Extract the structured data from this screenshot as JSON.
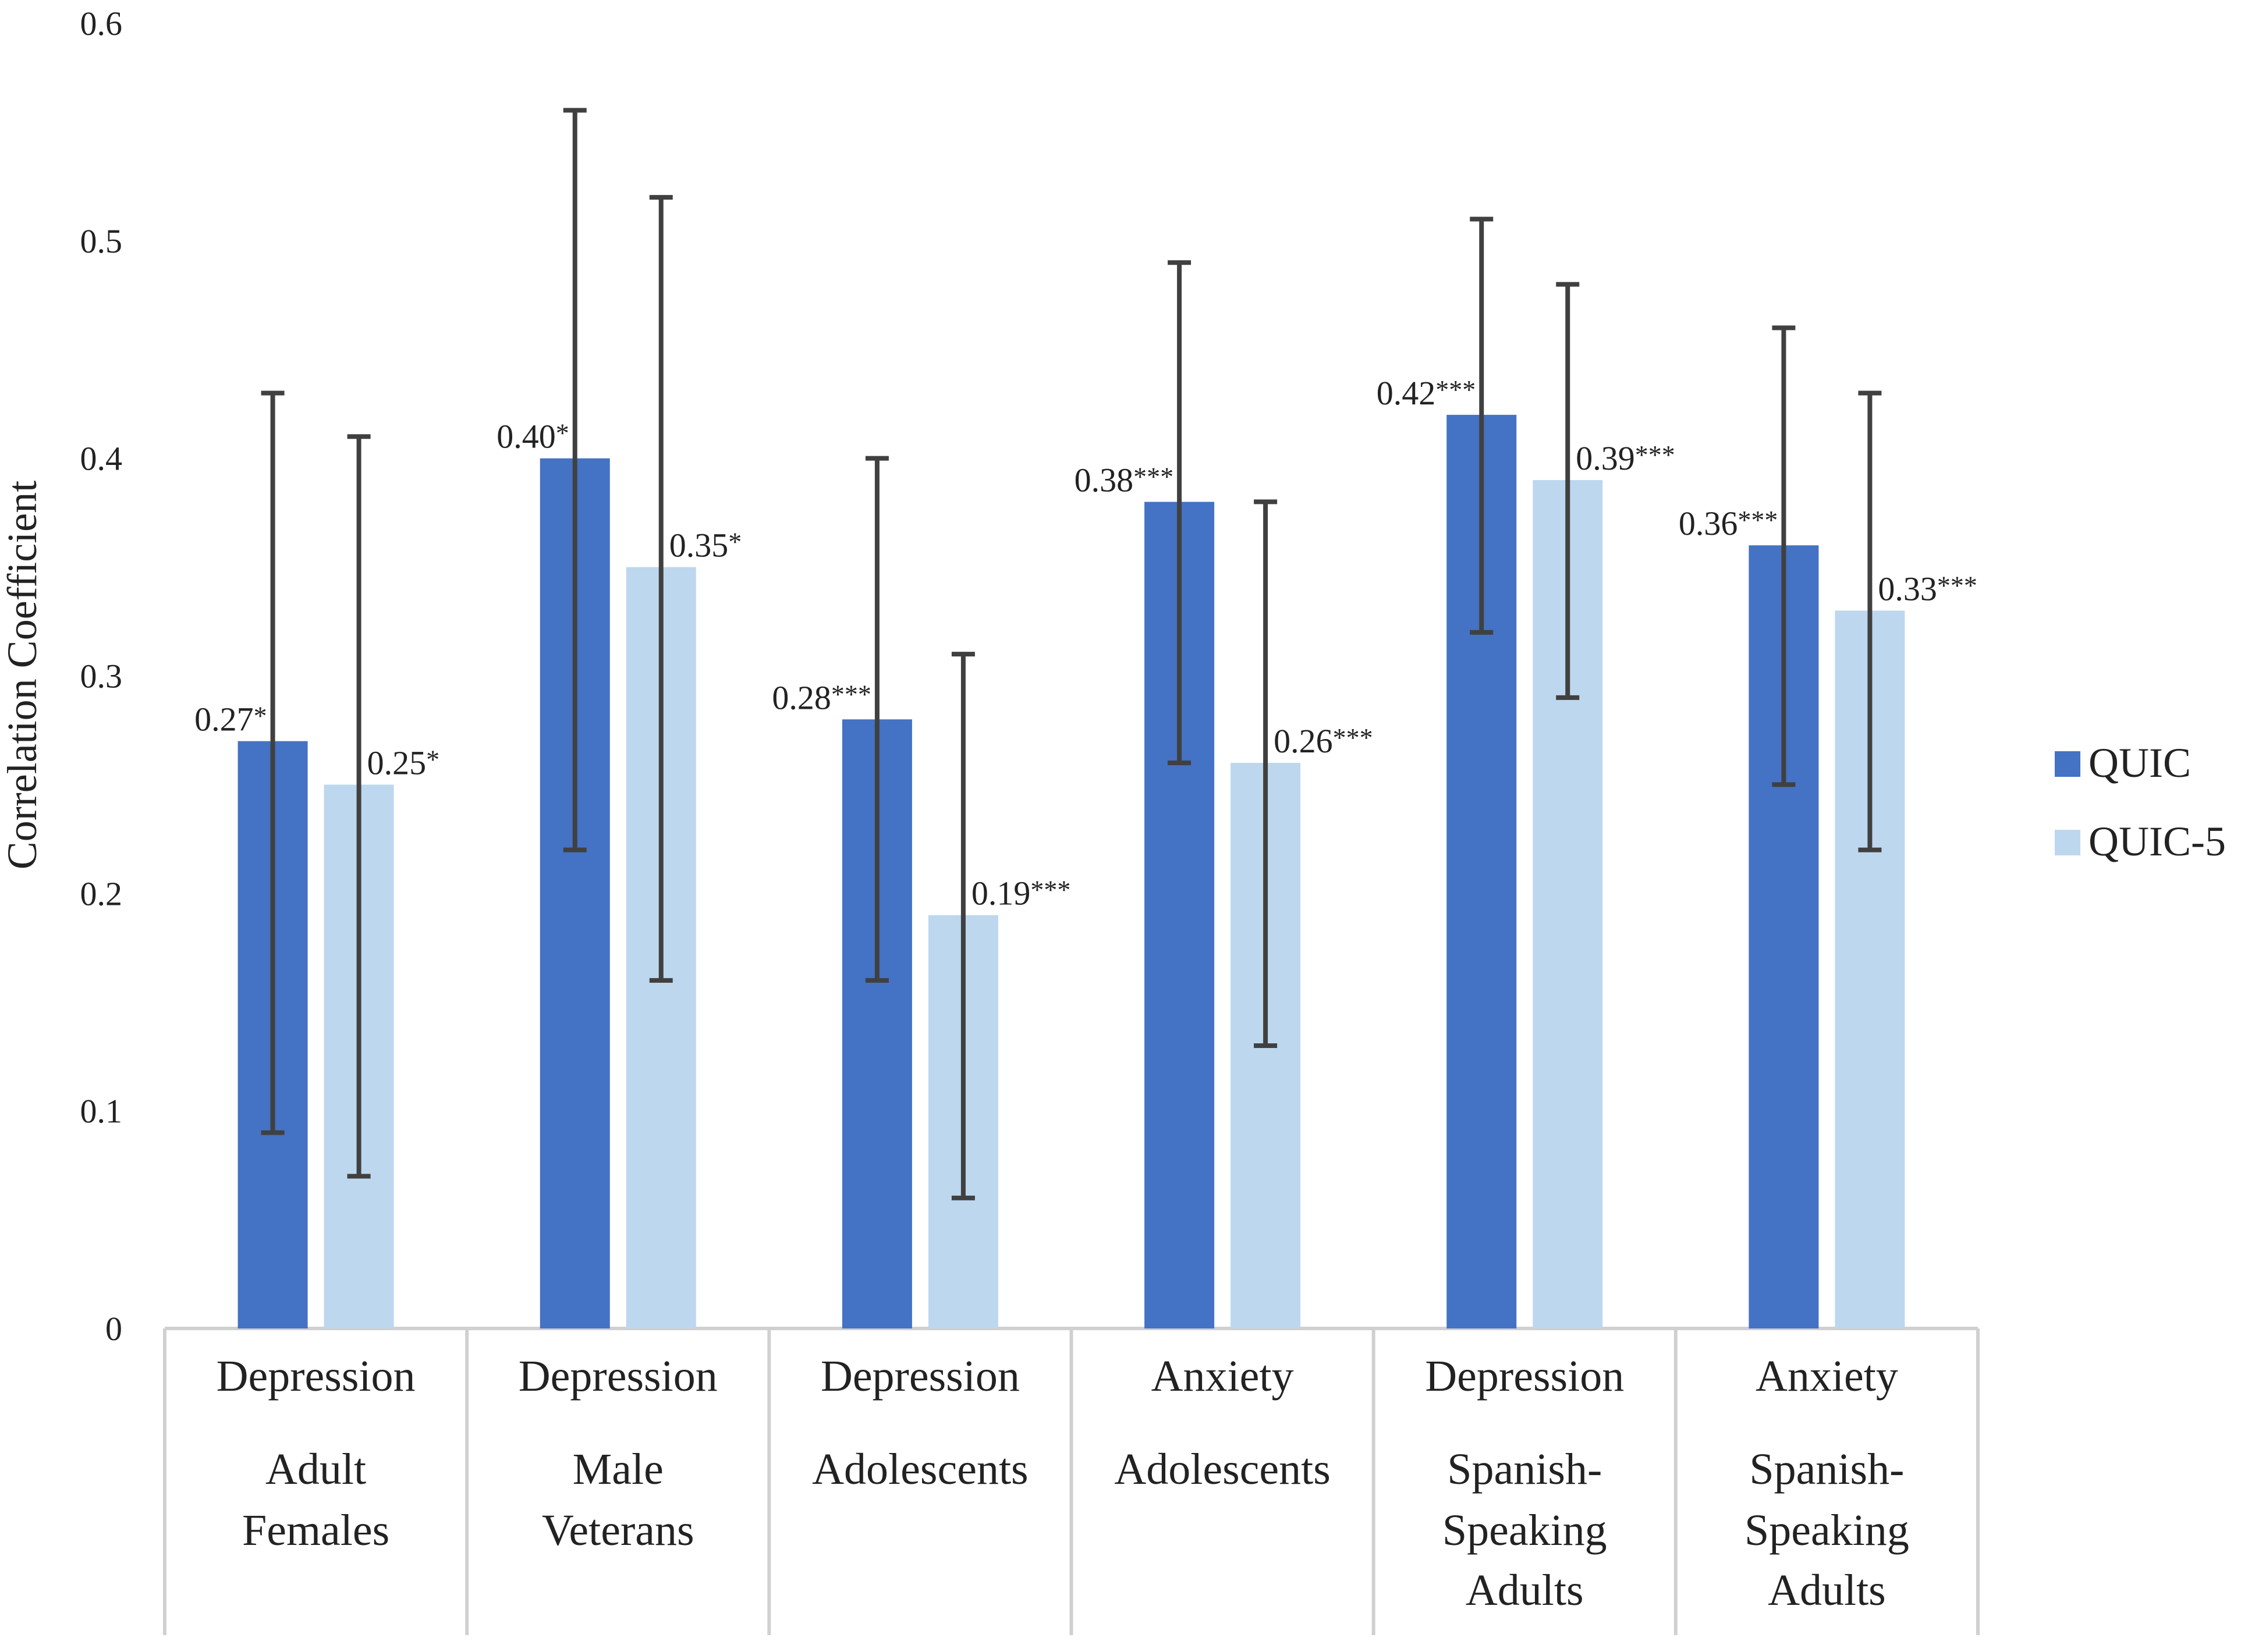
{
  "chart_data": {
    "type": "bar",
    "title": "",
    "xlabel": "",
    "ylabel": "Correlation Coefficient",
    "ylim": [
      0,
      0.6
    ],
    "yticks": [
      "0",
      "0.1",
      "0.2",
      "0.3",
      "0.4",
      "0.5",
      "0.6"
    ],
    "grid": false,
    "legend_position": "right",
    "categories": [
      {
        "lines": [
          "Depression",
          "Adult",
          "Females"
        ]
      },
      {
        "lines": [
          "Depression",
          "Male",
          "Veterans"
        ]
      },
      {
        "lines": [
          "Depression",
          "Adolescents"
        ]
      },
      {
        "lines": [
          "Anxiety",
          "Adolescents"
        ]
      },
      {
        "lines": [
          "Depression",
          "Spanish-",
          "Speaking",
          "Adults"
        ]
      },
      {
        "lines": [
          "Anxiety",
          "Spanish-",
          "Speaking",
          "Adults"
        ]
      }
    ],
    "series": [
      {
        "name": "QUIC",
        "color": "#4472c4",
        "values": [
          0.27,
          0.4,
          0.28,
          0.38,
          0.42,
          0.36
        ],
        "labels": [
          "0.27*",
          "0.40*",
          "0.28***",
          "0.38***",
          "0.42***",
          "0.36***"
        ],
        "error_low": [
          0.09,
          0.22,
          0.16,
          0.26,
          0.32,
          0.25
        ],
        "error_high": [
          0.43,
          0.56,
          0.4,
          0.49,
          0.51,
          0.46
        ]
      },
      {
        "name": "QUIC-5",
        "color": "#bdd7ee",
        "values": [
          0.25,
          0.35,
          0.19,
          0.26,
          0.39,
          0.33
        ],
        "labels": [
          "0.25*",
          "0.35*",
          "0.19***",
          "0.26***",
          "0.39***",
          "0.33***"
        ],
        "error_low": [
          0.07,
          0.16,
          0.06,
          0.13,
          0.29,
          0.22
        ],
        "error_high": [
          0.41,
          0.52,
          0.31,
          0.38,
          0.48,
          0.43
        ]
      }
    ],
    "error_bar_color": "#404040",
    "axis_line_color": "#d0d0d0"
  }
}
